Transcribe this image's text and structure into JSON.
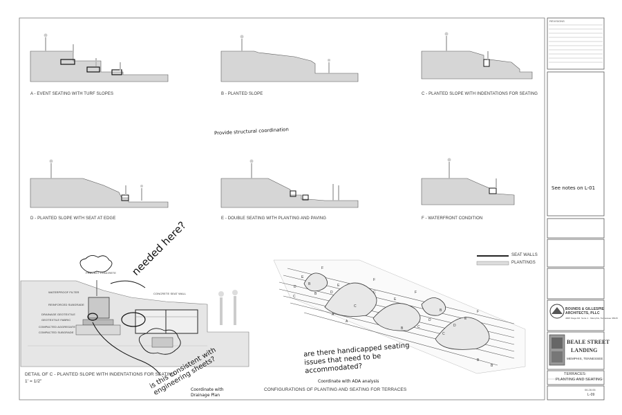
{
  "sections": {
    "a": "A - EVENT SEATING WITH TURF SLOPES",
    "b": "B - PLANTED SLOPE",
    "c": "C - PLANTED SLOPE WITH INDENTATIONS FOR SEATING",
    "d": "D - PLANTED SLOPE WITH SEAT AT EDGE",
    "e": "E - DOUBLE SEATING  WITH PLANTING AND PAVING",
    "f": "F - WATERFRONT CONDITION"
  },
  "detail": {
    "title": "DETAIL OF C - PLANTED SLOPE WITH INDENTATIONS FOR SEATING",
    "scale": "1' = 1/2\"",
    "labels": {
      "precast": "PRECAST CONCRETE",
      "waterproof": "WATERPROOF FILTER",
      "reinforced_sub": "REINFORCED SUBGRADE",
      "drainage": "DRAINAGE GEOTEXTILE",
      "geotextile": "GEOTEXTILE FABRIC",
      "compacted_agg": "COMPACTED AGGREGATE",
      "compacted_sub": "COMPACTED SUBGRADE",
      "concrete_seat": "CONCRETE SEAT WALL"
    }
  },
  "plan": {
    "legend_seatwalls": "SEAT WALLS",
    "legend_plantings": "PLANTINGS",
    "title": "CONFIGURATIONS OF PLANTING AND SEATING FOR TERRACES",
    "letters": [
      "F",
      "F",
      "F",
      "E",
      "E",
      "E",
      "D",
      "D",
      "D",
      "C",
      "C",
      "C",
      "C",
      "B",
      "B",
      "B",
      "B",
      "A",
      "A",
      "B",
      "B",
      "C",
      "D",
      "E",
      "F"
    ]
  },
  "annotations": {
    "structural": "Provide structural coordination",
    "needed": "needed here?",
    "consistent": "is this consistent with engineering sheets?",
    "drainage": "Coordinate with Drainage Plan",
    "handicapped": "are there handicapped seating issues that need to be accommodated?",
    "ada": "Coordinate with ADA analysis",
    "see_notes": "See notes on L-01"
  },
  "title_block": {
    "revisions": "REVISIONS",
    "firm_line1": "BOUNDS & GILLESPIE",
    "firm_line2": "ARCHITECTS, PLLC",
    "firm_address": "4825 Stage Rd. Suite 1 · Memphis, Tennessee 38115",
    "project_line1": "BEALE STREET",
    "project_line2": "LANDING",
    "project_city": "MEMPHIS, TENNESSEE",
    "sheet_title_1": "TERRACES:",
    "sheet_title_2": "PLANTING AND SEATING",
    "date": "06.28.06",
    "sheet_number": "L-09"
  }
}
